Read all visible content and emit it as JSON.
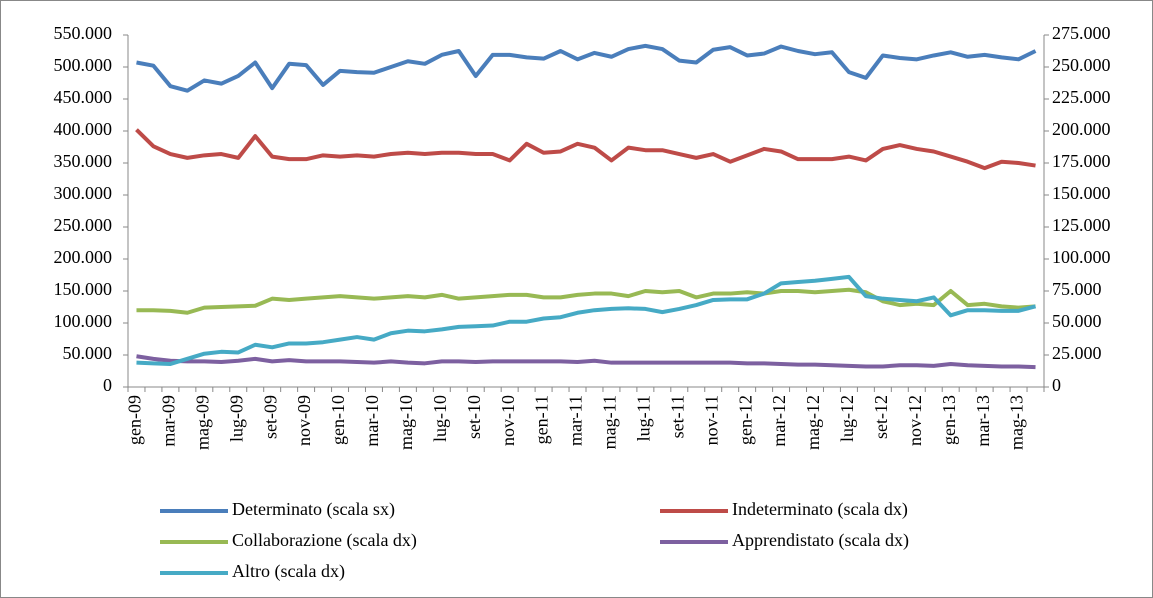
{
  "chart_data": {
    "type": "line",
    "categories": [
      "gen-09",
      null,
      "mar-09",
      null,
      "mag-09",
      null,
      "lug-09",
      null,
      "set-09",
      null,
      "nov-09",
      null,
      "gen-10",
      null,
      "mar-10",
      null,
      "mag-10",
      null,
      "lug-10",
      null,
      "set-10",
      null,
      "nov-10",
      null,
      "gen-11",
      null,
      "mar-11",
      null,
      "mag-11",
      null,
      "lug-11",
      null,
      "set-11",
      null,
      "nov-11",
      null,
      "gen-12",
      null,
      "mar-12",
      null,
      "mag-12",
      null,
      "lug-12",
      null,
      "set-12",
      null,
      "nov-12",
      null,
      "gen-13",
      null,
      "mar-13",
      null,
      "mag-13",
      null
    ],
    "ylim": [
      0,
      550000
    ],
    "yticks": [
      0,
      {
        "value": 50000,
        "label": "50.000"
      },
      {
        "value": 100000,
        "label": "100.000"
      },
      {
        "value": 150000,
        "label": "150.000"
      },
      {
        "value": 200000,
        "label": "200.000"
      },
      {
        "value": 250000,
        "label": "250.000"
      },
      {
        "value": 300000,
        "label": "300.000"
      },
      {
        "value": 350000,
        "label": "350.000"
      },
      {
        "value": 400000,
        "label": "400.000"
      },
      {
        "value": 450000,
        "label": "450.000"
      },
      {
        "value": 500000,
        "label": "500.000"
      },
      {
        "value": 550000,
        "label": "550.000"
      }
    ],
    "y2lim": [
      0,
      275000
    ],
    "y2ticks": [
      0,
      {
        "value": 25000,
        "label": "25.000"
      },
      {
        "value": 50000,
        "label": "50.000"
      },
      {
        "value": 75000,
        "label": "75.000"
      },
      {
        "value": 100000,
        "label": "100.000"
      },
      {
        "value": 125000,
        "label": "125.000"
      },
      {
        "value": 150000,
        "label": "150.000"
      },
      {
        "value": 175000,
        "label": "175.000"
      },
      {
        "value": 200000,
        "label": "200.000"
      },
      {
        "value": 225000,
        "label": "225.000"
      },
      {
        "value": 250000,
        "label": "250.000"
      },
      {
        "value": 275000,
        "label": "275.000"
      }
    ],
    "series": [
      {
        "name": "Determinato (scala sx)",
        "color": "#4a7ebb",
        "axis": "y",
        "values": [
          507000,
          502000,
          470000,
          463000,
          479000,
          474000,
          486000,
          507000,
          467000,
          505000,
          503000,
          472000,
          494000,
          492000,
          491000,
          500000,
          509000,
          505000,
          519000,
          525000,
          486000,
          519000,
          519000,
          515000,
          513000,
          525000,
          512000,
          522000,
          516000,
          528000,
          533000,
          528000,
          510000,
          507000,
          527000,
          531000,
          518000,
          521000,
          532000,
          525000,
          520000,
          523000,
          492000,
          483000,
          518000,
          514000,
          512000,
          518000,
          523000,
          516000,
          519000,
          515000,
          512000,
          525000
        ]
      },
      {
        "name": "Indeterminato (scala dx)",
        "color": "#be4b48",
        "axis": "y2",
        "values": [
          201000,
          188000,
          182000,
          179000,
          181000,
          182000,
          179000,
          196000,
          180000,
          178000,
          178000,
          181000,
          180000,
          181000,
          180000,
          182000,
          183000,
          182000,
          183000,
          183000,
          182000,
          182000,
          177000,
          190000,
          183000,
          184000,
          190000,
          187000,
          177000,
          187000,
          185000,
          185000,
          182000,
          179000,
          182000,
          176000,
          181000,
          186000,
          184000,
          178000,
          178000,
          178000,
          180000,
          177000,
          186000,
          189000,
          186000,
          184000,
          180000,
          176000,
          171000,
          176000,
          175000,
          173000
        ]
      },
      {
        "name": "Collaborazione (scala dx)",
        "color": "#98b954",
        "axis": "y2",
        "values": [
          60000,
          60000,
          59500,
          58000,
          62000,
          62500,
          63000,
          63500,
          69000,
          68000,
          69000,
          70000,
          71000,
          70000,
          69000,
          70000,
          71000,
          70000,
          72000,
          69000,
          70000,
          71000,
          72000,
          72000,
          70000,
          70000,
          72000,
          73000,
          73000,
          71000,
          75000,
          74000,
          75000,
          70000,
          73000,
          73000,
          74000,
          73000,
          75000,
          75000,
          74000,
          75000,
          76000,
          74000,
          67000,
          64000,
          65000,
          64000,
          75000,
          64000,
          65000,
          63000,
          62000,
          63000
        ]
      },
      {
        "name": "Apprendistato (scala dx)",
        "color": "#7d60a0",
        "axis": "y2",
        "values": [
          24000,
          22000,
          20500,
          20000,
          20000,
          19500,
          20500,
          22000,
          20000,
          21000,
          20000,
          20000,
          20000,
          19500,
          19000,
          20000,
          19000,
          18500,
          20000,
          20000,
          19500,
          20000,
          20000,
          20000,
          20000,
          20000,
          19500,
          20500,
          19000,
          19000,
          19000,
          19000,
          19000,
          19000,
          19000,
          19000,
          18500,
          18500,
          18000,
          17500,
          17500,
          17000,
          16500,
          16000,
          16000,
          17000,
          17000,
          16500,
          18000,
          17000,
          16500,
          16000,
          16000,
          15500
        ]
      },
      {
        "name": "Altro (scala dx)",
        "color": "#46aac5",
        "axis": "y2",
        "values": [
          19000,
          18500,
          18000,
          22000,
          26000,
          27500,
          27000,
          33000,
          31000,
          34000,
          34000,
          35000,
          37000,
          39000,
          37000,
          42000,
          44000,
          43500,
          45000,
          47000,
          47500,
          48000,
          51000,
          51000,
          53500,
          54500,
          58000,
          60000,
          61000,
          61500,
          61000,
          58500,
          61000,
          64000,
          68000,
          68500,
          68500,
          73000,
          81000,
          82000,
          83000,
          84500,
          86000,
          71000,
          69000,
          68000,
          67000,
          70000,
          56000,
          60000,
          60000,
          59500,
          59500,
          63000
        ]
      }
    ]
  }
}
